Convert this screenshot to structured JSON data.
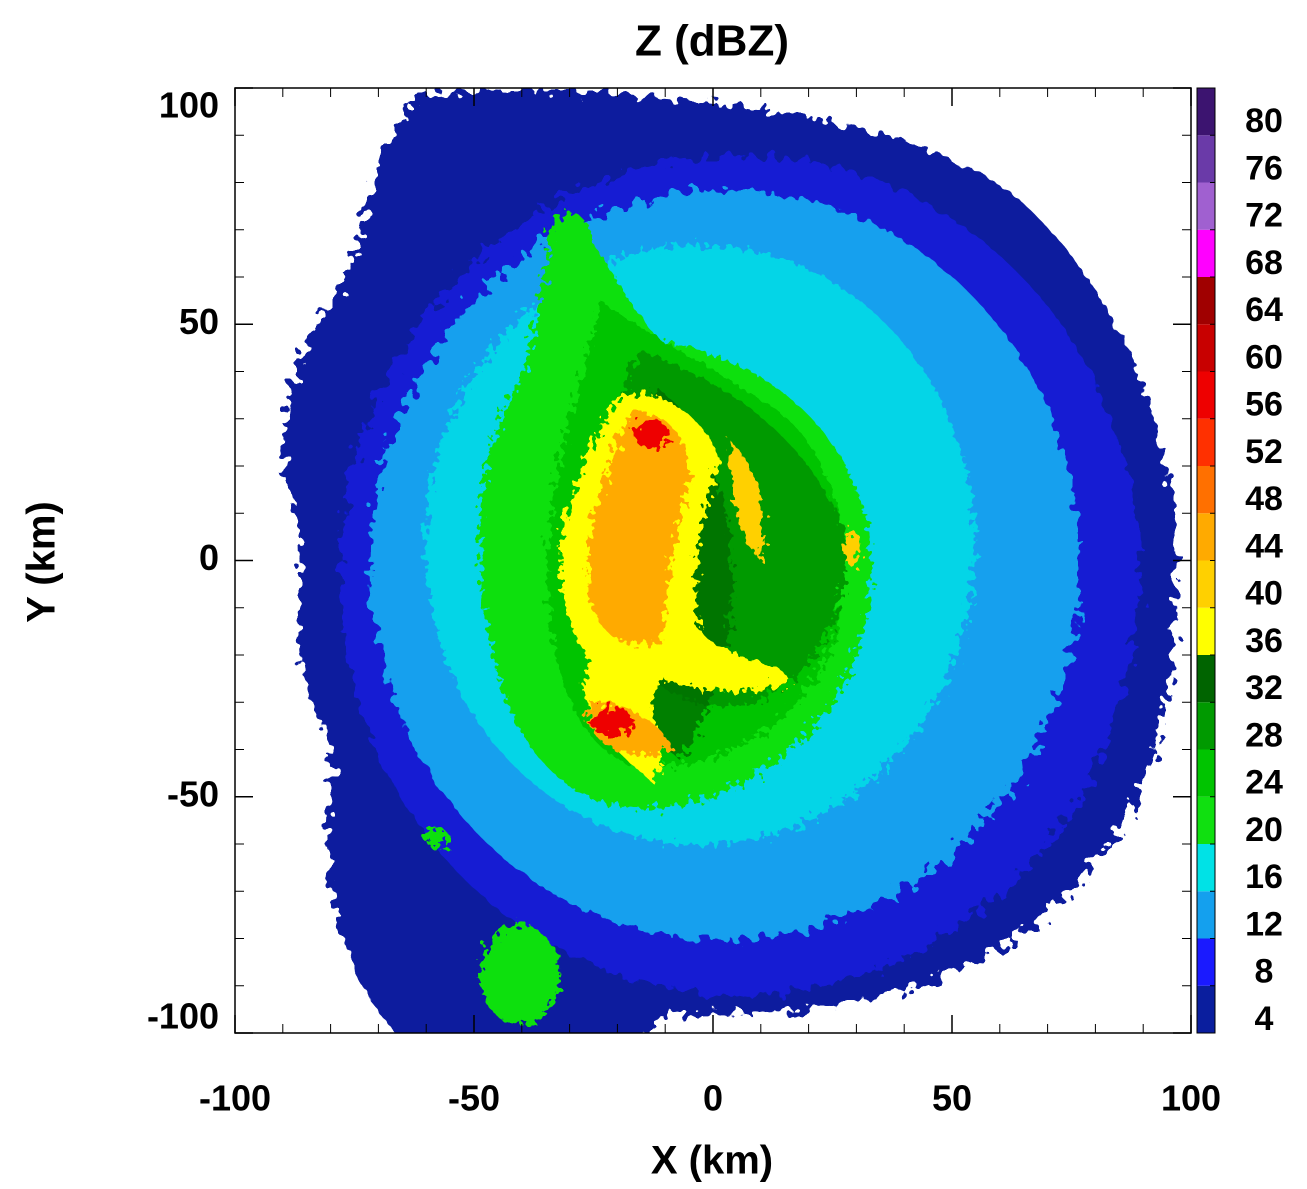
{
  "chart_data": {
    "type": "radar-ppi",
    "title": "Z (dBZ)",
    "x_label": "X (km)",
    "y_label": "Y (km)",
    "xlim": [
      -100,
      100
    ],
    "ylim": [
      -100,
      100
    ],
    "xticks": [
      -100,
      -50,
      0,
      50,
      100
    ],
    "yticks": [
      -100,
      -50,
      0,
      50,
      100
    ],
    "xminorticks": [
      -90,
      -80,
      -70,
      -60,
      -40,
      -30,
      -20,
      -10,
      10,
      20,
      30,
      40,
      60,
      70,
      80,
      90
    ],
    "yminorticks": [
      -90,
      -80,
      -70,
      -60,
      -40,
      -30,
      -20,
      -10,
      10,
      20,
      30,
      40,
      60,
      70,
      80,
      90
    ],
    "colorbar": {
      "lim": [
        4,
        84
      ],
      "levels": [
        4,
        8,
        12,
        16,
        20,
        24,
        28,
        32,
        36,
        40,
        44,
        48,
        52,
        56,
        60,
        64,
        68,
        72,
        76,
        80
      ],
      "colors": [
        "#0a1e9e",
        "#1a1aff",
        "#14a0ee",
        "#00e2e6",
        "#10e010",
        "#00c400",
        "#009a00",
        "#006400",
        "#ffff00",
        "#ffd000",
        "#ffaa00",
        "#ff7000",
        "#ff3000",
        "#ee0000",
        "#c80000",
        "#a00000",
        "#ff00ff",
        "#a060d0",
        "#6a3aa8",
        "#3c1470"
      ]
    }
  }
}
